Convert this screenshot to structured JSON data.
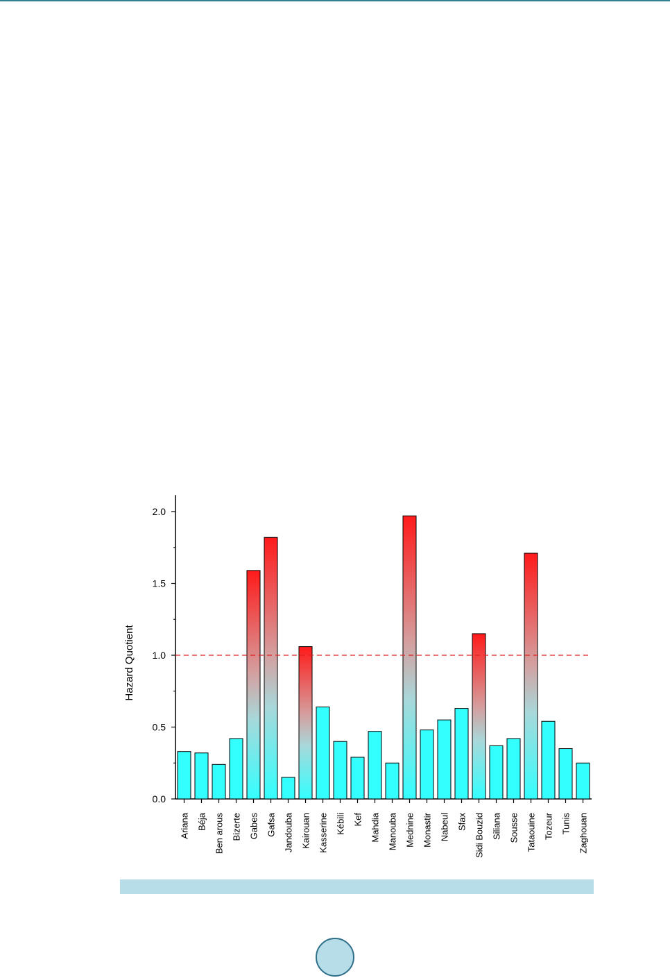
{
  "chart_data": {
    "type": "bar",
    "categories": [
      "Ariana",
      "Béja",
      "Ben arous",
      "Bizerte",
      "Gabes",
      "Gafsa",
      "Jandouba",
      "Kairouan",
      "Kasserine",
      "Kébili",
      "Kef",
      "Mahdia",
      "Manouba",
      "Mednine",
      "Monastir",
      "Nabeul",
      "Sfax",
      "Sidi Bouzid",
      "Siliana",
      "Sousse",
      "Tataouine",
      "Tozeur",
      "Tunis",
      "Zaghouan"
    ],
    "values": [
      0.33,
      0.32,
      0.24,
      0.42,
      1.59,
      1.82,
      0.15,
      1.06,
      0.64,
      0.4,
      0.29,
      0.47,
      0.25,
      1.97,
      0.48,
      0.55,
      0.63,
      1.15,
      0.37,
      0.42,
      1.71,
      0.54,
      0.35,
      0.25
    ],
    "ylabel": "Hazard Quotient",
    "xlabel": "",
    "ylim": [
      0,
      2.1
    ],
    "yticks": [
      "0.0",
      "0.5",
      "1.0",
      "1.5",
      "2.0"
    ],
    "threshold": 1.0,
    "colors": {
      "low": "#33ffff",
      "high": "#ff1a1a",
      "mid": "#c0c0c0",
      "threshold_line": "#e02020"
    },
    "grid": false
  }
}
